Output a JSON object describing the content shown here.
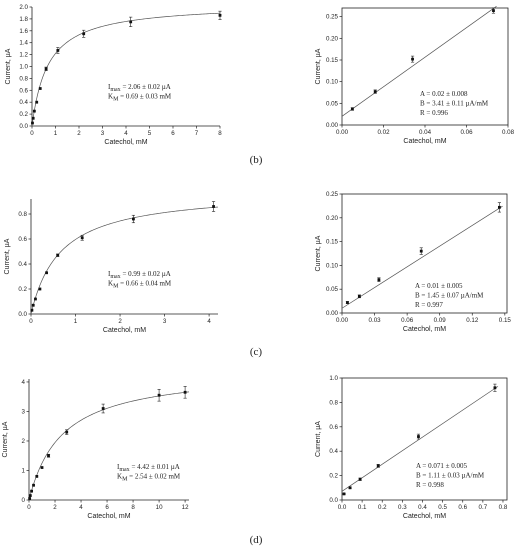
{
  "panel_labels": [
    "(b)",
    "(c)",
    "(d)"
  ],
  "chart_data": [
    {
      "id": "b-left",
      "type": "scatter",
      "fit": "michaelis-menten",
      "fit_params": {
        "imax": 2.06,
        "km": 0.69
      },
      "xlabel": "Catechol, mM",
      "ylabel": "Current, µA",
      "xlim": [
        0,
        8
      ],
      "ylim": [
        0,
        2.0
      ],
      "xticks": [
        0,
        1,
        2,
        3,
        4,
        5,
        6,
        7,
        8
      ],
      "yticks": [
        0.0,
        0.2,
        0.4,
        0.6,
        0.8,
        1.0,
        1.2,
        1.4,
        1.6,
        1.8,
        2.0
      ],
      "tick_decimals": 1,
      "x": [
        0.02,
        0.05,
        0.1,
        0.2,
        0.35,
        0.6,
        1.1,
        2.2,
        4.2,
        8.0
      ],
      "y": [
        0.05,
        0.13,
        0.25,
        0.4,
        0.63,
        0.96,
        1.27,
        1.55,
        1.75,
        1.86
      ],
      "yerr": [
        0,
        0,
        0,
        0,
        0,
        0.03,
        0.05,
        0.06,
        0.08,
        0.07
      ],
      "annotation": [
        "I_max = 2.06 ± 0.02 µA",
        "K_M = 0.69 ± 0.03 mM"
      ]
    },
    {
      "id": "b-right",
      "type": "scatter",
      "fit": "linear",
      "fit_params": {
        "a": 0.02,
        "b": 3.41
      },
      "xlabel": "Catechol, mM",
      "ylabel": "Current, µA",
      "xlim": [
        0,
        0.08
      ],
      "ylim": [
        0,
        0.27
      ],
      "xticks": [
        0.0,
        0.02,
        0.04,
        0.06,
        0.08
      ],
      "yticks": [
        0.0,
        0.05,
        0.1,
        0.15,
        0.2,
        0.25
      ],
      "tick_decimals": 2,
      "x": [
        0.005,
        0.016,
        0.034,
        0.073
      ],
      "y": [
        0.037,
        0.077,
        0.152,
        0.264
      ],
      "yerr": [
        0.003,
        0.004,
        0.007,
        0.006
      ],
      "annotation": [
        "A = 0.02 ± 0.008",
        "B = 3.41 ± 0.11 µA/mM",
        "R = 0.996"
      ]
    },
    {
      "id": "c-left",
      "type": "scatter",
      "fit": "michaelis-menten",
      "fit_params": {
        "imax": 0.99,
        "km": 0.66
      },
      "xlabel": "Catechol, mM",
      "ylabel": "Current, µA",
      "xlim": [
        0,
        4.2
      ],
      "ylim": [
        0,
        0.92
      ],
      "xticks": [
        0,
        1,
        2,
        3,
        4
      ],
      "yticks": [
        0.0,
        0.2,
        0.4,
        0.6,
        0.8
      ],
      "tick_decimals": 1,
      "x": [
        0.02,
        0.05,
        0.1,
        0.2,
        0.35,
        0.6,
        1.15,
        2.3,
        4.1
      ],
      "y": [
        0.03,
        0.07,
        0.12,
        0.2,
        0.33,
        0.47,
        0.61,
        0.76,
        0.86
      ],
      "yerr": [
        0,
        0,
        0,
        0,
        0,
        0.01,
        0.02,
        0.03,
        0.04
      ],
      "annotation": [
        "I_max = 0.99 ± 0.02 µA",
        "K_M = 0.66 ± 0.04 mM"
      ]
    },
    {
      "id": "c-right",
      "type": "scatter",
      "fit": "linear",
      "fit_params": {
        "a": 0.01,
        "b": 1.45
      },
      "xlabel": "Catechol, mM",
      "ylabel": "Current, µA",
      "xlim": [
        0,
        0.152
      ],
      "ylim": [
        0,
        0.25
      ],
      "xticks": [
        0.0,
        0.03,
        0.06,
        0.09,
        0.12,
        0.15
      ],
      "yticks": [
        0.0,
        0.05,
        0.1,
        0.15,
        0.2,
        0.25
      ],
      "tick_decimals": 2,
      "x": [
        0.005,
        0.016,
        0.034,
        0.073,
        0.145
      ],
      "y": [
        0.022,
        0.035,
        0.07,
        0.13,
        0.222
      ],
      "yerr": [
        0.002,
        0.003,
        0.004,
        0.007,
        0.01
      ],
      "annotation": [
        "A = 0.01 ± 0.005",
        "B = 1.45 ± 0.07 µA/mM",
        "R = 0.997"
      ]
    },
    {
      "id": "d-left",
      "type": "scatter",
      "fit": "michaelis-menten",
      "fit_params": {
        "imax": 4.42,
        "km": 2.54
      },
      "xlabel": "Catechol, mM",
      "ylabel": "Current, µA",
      "xlim": [
        0,
        12.3
      ],
      "ylim": [
        0,
        4.1
      ],
      "xticks": [
        0,
        2,
        4,
        6,
        8,
        10,
        12
      ],
      "yticks": [
        0,
        1,
        2,
        3,
        4
      ],
      "tick_decimals": 0,
      "x": [
        0.05,
        0.1,
        0.2,
        0.35,
        0.6,
        1.0,
        1.5,
        2.9,
        5.7,
        10.0,
        12.0
      ],
      "y": [
        0.05,
        0.15,
        0.3,
        0.5,
        0.8,
        1.1,
        1.5,
        2.3,
        3.1,
        3.55,
        3.65
      ],
      "yerr": [
        0,
        0,
        0,
        0,
        0,
        0,
        0.05,
        0.08,
        0.15,
        0.2,
        0.2
      ],
      "annotation": [
        "I_max = 4.42 ± 0.01 µA",
        "K_M = 2.54 ± 0.02 mM"
      ]
    },
    {
      "id": "d-right",
      "type": "scatter",
      "fit": "linear",
      "fit_params": {
        "a": 0.071,
        "b": 1.11
      },
      "xlabel": "Catechol, mM",
      "ylabel": "Current, µA",
      "xlim": [
        0,
        0.82
      ],
      "ylim": [
        0,
        1.0
      ],
      "xticks": [
        0.0,
        0.1,
        0.2,
        0.3,
        0.4,
        0.5,
        0.6,
        0.7,
        0.8
      ],
      "yticks": [
        0.0,
        0.2,
        0.4,
        0.6,
        0.8,
        1.0
      ],
      "tick_decimals": 1,
      "x": [
        0.01,
        0.04,
        0.09,
        0.18,
        0.38,
        0.76
      ],
      "y": [
        0.05,
        0.1,
        0.17,
        0.28,
        0.52,
        0.92
      ],
      "yerr": [
        0.005,
        0.007,
        0.01,
        0.012,
        0.02,
        0.03
      ],
      "annotation": [
        "A = 0.071 ± 0.005",
        "B = 1.11 ± 0.03 µA/mM",
        "R = 0.998"
      ]
    }
  ]
}
